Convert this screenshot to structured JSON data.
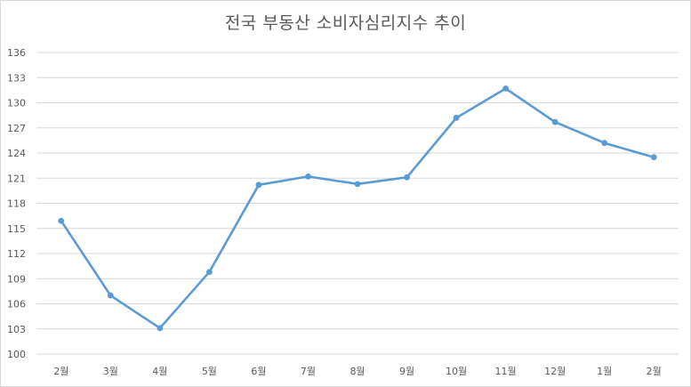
{
  "chart_data": {
    "type": "line",
    "title": "전국 부동산 소비자심리지수 추이",
    "xlabel": "",
    "ylabel": "",
    "categories": [
      "2월",
      "3월",
      "4월",
      "5월",
      "6월",
      "7월",
      "8월",
      "9월",
      "10월",
      "11월",
      "12월",
      "1월",
      "2월"
    ],
    "series": [
      {
        "values": [
          115.9,
          107.0,
          103.1,
          109.8,
          120.2,
          121.2,
          120.3,
          121.1,
          128.2,
          131.7,
          127.7,
          125.2,
          123.5
        ]
      }
    ],
    "ylim": [
      100,
      136
    ],
    "yticks": [
      100,
      103,
      106,
      109,
      112,
      115,
      118,
      121,
      124,
      127,
      130,
      133,
      136
    ],
    "grid": true,
    "legend": "none",
    "colors": {
      "line": "#5b9bd5",
      "grid": "#d9d9d9",
      "text": "#595959"
    }
  }
}
